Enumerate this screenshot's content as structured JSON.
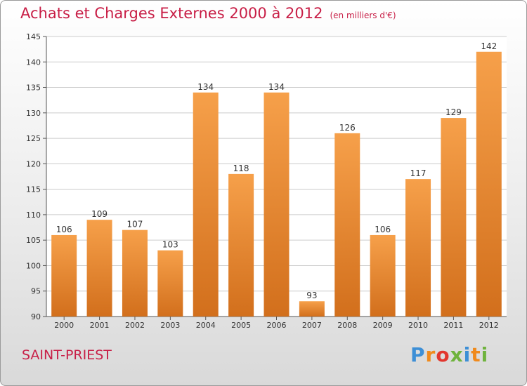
{
  "header": {
    "title": "Achats et Charges Externes 2000 à 2012",
    "unit_note": "(en milliers d'€)"
  },
  "footer": {
    "commune": "SAINT-PRIEST",
    "logo": "Proxiti"
  },
  "colors": {
    "title": "#c81e46",
    "bar_top": "#f6a04a",
    "bar_bottom": "#d26f1c",
    "grid": "#cccccc"
  },
  "chart_data": {
    "type": "bar",
    "title": "Achats et Charges Externes 2000 à 2012",
    "subtitle": "(en milliers d'€)",
    "categories": [
      "2000",
      "2001",
      "2002",
      "2003",
      "2004",
      "2005",
      "2006",
      "2007",
      "2008",
      "2009",
      "2010",
      "2011",
      "2012"
    ],
    "values": [
      106,
      109,
      107,
      103,
      134,
      118,
      134,
      93,
      126,
      106,
      117,
      129,
      142
    ],
    "ylim": [
      90,
      145
    ],
    "yticks": [
      90,
      95,
      100,
      105,
      110,
      115,
      120,
      125,
      130,
      135,
      140,
      145
    ],
    "grid": true,
    "xlabel": "",
    "ylabel": ""
  }
}
